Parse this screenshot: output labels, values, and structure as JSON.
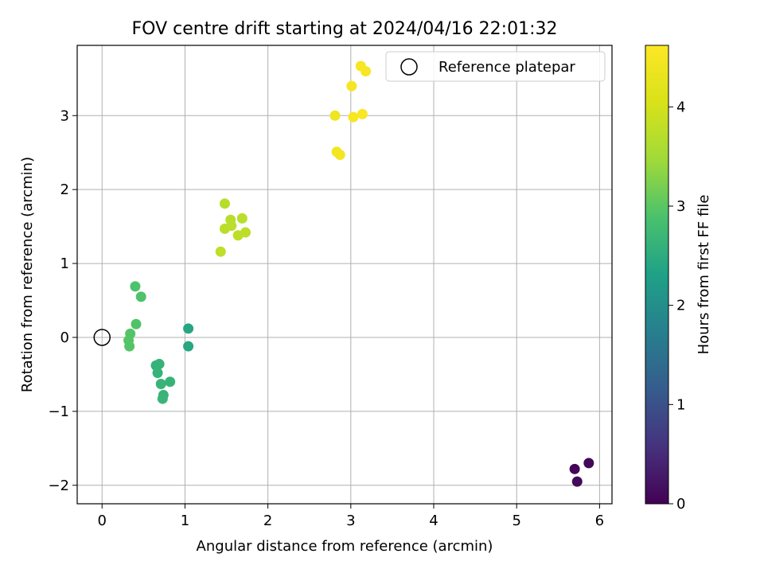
{
  "chart_data": {
    "type": "scatter",
    "title": "FOV centre drift starting at 2024/04/16 22:01:32",
    "xlabel": "Angular distance from reference (arcmin)",
    "ylabel": "Rotation from reference (arcmin)",
    "xlim": [
      -0.3,
      6.15
    ],
    "ylim": [
      -2.25,
      3.95
    ],
    "xticks": [
      0,
      1,
      2,
      3,
      4,
      5,
      6
    ],
    "yticks": [
      -2,
      -1,
      0,
      1,
      2,
      3
    ],
    "xtick_labels": [
      "0",
      "1",
      "2",
      "3",
      "4",
      "5",
      "6"
    ],
    "ytick_labels": [
      "−2",
      "−1",
      "0",
      "1",
      "2",
      "3"
    ],
    "grid": true,
    "legend": {
      "placement": "top-right",
      "entries": [
        "Reference platepar"
      ]
    },
    "reference_point": {
      "label": "Reference platepar",
      "x": 0,
      "y": 0
    },
    "colorbar": {
      "label": "Hours from first FF file",
      "colormap": "viridis",
      "range": [
        0,
        4.62
      ],
      "ticks": [
        0,
        1,
        2,
        3,
        4
      ],
      "tick_labels": [
        "0",
        "1",
        "2",
        "3",
        "4"
      ]
    },
    "points": [
      {
        "x": 5.7,
        "y": -1.78,
        "h": 0.05
      },
      {
        "x": 5.87,
        "y": -1.7,
        "h": 0.08
      },
      {
        "x": 5.73,
        "y": -1.95,
        "h": 0.1
      },
      {
        "x": 1.04,
        "y": 0.12,
        "h": 2.4
      },
      {
        "x": 1.04,
        "y": -0.12,
        "h": 2.42
      },
      {
        "x": 0.65,
        "y": -0.38,
        "h": 2.6
      },
      {
        "x": 0.69,
        "y": -0.36,
        "h": 2.62
      },
      {
        "x": 0.67,
        "y": -0.48,
        "h": 2.63
      },
      {
        "x": 0.82,
        "y": -0.6,
        "h": 2.64
      },
      {
        "x": 0.71,
        "y": -0.63,
        "h": 2.65
      },
      {
        "x": 0.74,
        "y": -0.78,
        "h": 2.66
      },
      {
        "x": 0.73,
        "y": -0.83,
        "h": 2.67
      },
      {
        "x": 0.4,
        "y": 0.69,
        "h": 2.9
      },
      {
        "x": 0.47,
        "y": 0.55,
        "h": 2.92
      },
      {
        "x": 0.41,
        "y": 0.18,
        "h": 2.93
      },
      {
        "x": 0.34,
        "y": 0.05,
        "h": 2.94
      },
      {
        "x": 0.32,
        "y": -0.04,
        "h": 2.95
      },
      {
        "x": 0.33,
        "y": -0.12,
        "h": 2.96
      },
      {
        "x": 1.48,
        "y": 1.81,
        "h": 3.7
      },
      {
        "x": 1.55,
        "y": 1.59,
        "h": 3.71
      },
      {
        "x": 1.69,
        "y": 1.61,
        "h": 3.72
      },
      {
        "x": 1.56,
        "y": 1.51,
        "h": 3.73
      },
      {
        "x": 1.48,
        "y": 1.47,
        "h": 3.74
      },
      {
        "x": 1.73,
        "y": 1.42,
        "h": 3.75
      },
      {
        "x": 1.64,
        "y": 1.38,
        "h": 3.76
      },
      {
        "x": 1.43,
        "y": 1.16,
        "h": 3.77
      },
      {
        "x": 3.12,
        "y": 3.67,
        "h": 4.52
      },
      {
        "x": 3.18,
        "y": 3.6,
        "h": 4.53
      },
      {
        "x": 3.01,
        "y": 3.4,
        "h": 4.5
      },
      {
        "x": 2.81,
        "y": 3.0,
        "h": 4.4
      },
      {
        "x": 3.03,
        "y": 2.98,
        "h": 4.54
      },
      {
        "x": 3.14,
        "y": 3.02,
        "h": 4.55
      },
      {
        "x": 2.83,
        "y": 2.51,
        "h": 4.45
      },
      {
        "x": 2.87,
        "y": 2.47,
        "h": 4.46
      }
    ]
  }
}
